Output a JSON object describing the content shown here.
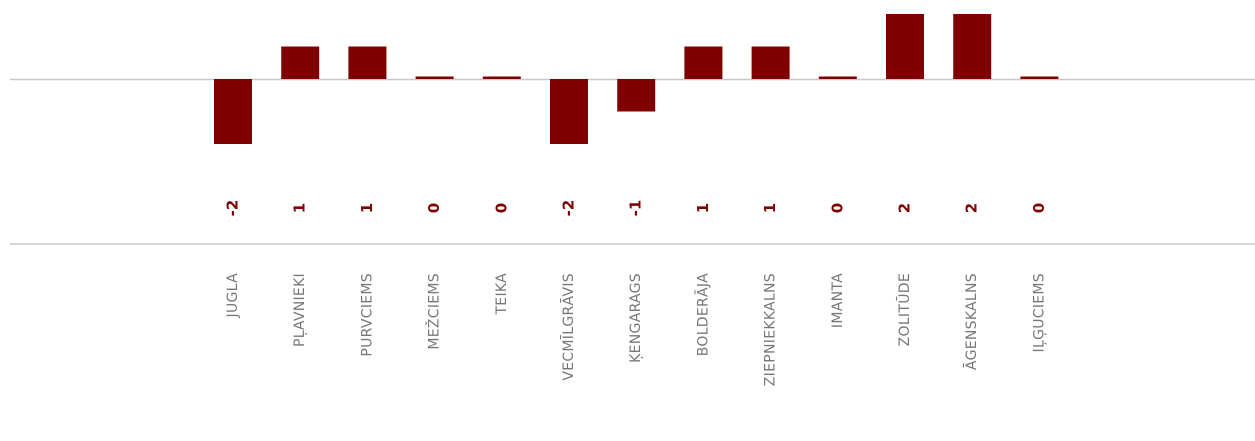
{
  "chart_data": {
    "type": "bar",
    "categories": [
      "JUGLA",
      "PĻAVNIEKI",
      "PURVCIEMS",
      "MEŽCIEMS",
      "TEIKA",
      "VECMĪLGRĀVIS",
      "ĶENGARAGS",
      "BOLDERĀJA",
      "ZIEPNIEKKALNS",
      "IMANTA",
      "ZOLITŪDE",
      "ĀGENSKALNS",
      "IĻĢUCIEMS"
    ],
    "values": [
      -2,
      1,
      1,
      0,
      0,
      -2,
      -1,
      1,
      1,
      0,
      2,
      2,
      0
    ],
    "value_labels": [
      "-2",
      "1",
      "1",
      "0",
      "0",
      "-2",
      "-1",
      "1",
      "1",
      "0",
      "2",
      "2",
      "0"
    ],
    "ylim": [
      -2,
      2
    ],
    "grid": false,
    "legend": "none",
    "title": "",
    "xlabel": "",
    "ylabel": "",
    "colors": {
      "bar": "#800000",
      "label": "#800000",
      "axis": "#c8c8c8",
      "category": "#777777"
    }
  }
}
